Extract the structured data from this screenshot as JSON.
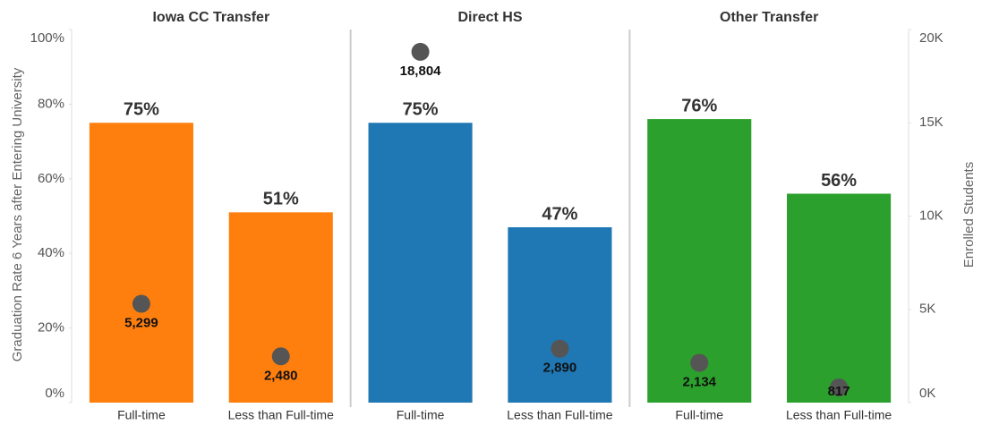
{
  "chart_data": {
    "type": "bar",
    "y_label": "Graduation Rate 6 Years after Entering University",
    "y2_label": "Enrolled Students",
    "ylim": [
      0,
      100
    ],
    "yticks": [
      {
        "value": 0,
        "label": "0%"
      },
      {
        "value": 20,
        "label": "20%"
      },
      {
        "value": 40,
        "label": "40%"
      },
      {
        "value": 60,
        "label": "60%"
      },
      {
        "value": 80,
        "label": "80%"
      },
      {
        "value": 100,
        "label": "100%"
      }
    ],
    "y2lim": [
      0,
      20000
    ],
    "y2ticks": [
      {
        "value": 0,
        "label": "0K"
      },
      {
        "value": 5000,
        "label": "5K"
      },
      {
        "value": 10000,
        "label": "10K"
      },
      {
        "value": 15000,
        "label": "15K"
      },
      {
        "value": 20000,
        "label": "20K"
      }
    ],
    "dot_color": "#555555",
    "panels": [
      {
        "title": "Iowa CC Transfer",
        "color": "#ff7f0e",
        "categories": [
          "Full-time",
          "Less than Full-time"
        ],
        "values": [
          75,
          51
        ],
        "value_labels": [
          "75%",
          "51%"
        ],
        "enrolled": [
          5299,
          2480
        ],
        "enrolled_labels": [
          "5,299",
          "2,480"
        ]
      },
      {
        "title": "Direct HS",
        "color": "#1f77b4",
        "categories": [
          "Full-time",
          "Less than Full-time"
        ],
        "values": [
          75,
          47
        ],
        "value_labels": [
          "75%",
          "47%"
        ],
        "enrolled": [
          18804,
          2890
        ],
        "enrolled_labels": [
          "18,804",
          "2,890"
        ]
      },
      {
        "title": "Other Transfer",
        "color": "#2ca02c",
        "categories": [
          "Full-time",
          "Less than Full-time"
        ],
        "values": [
          76,
          56
        ],
        "value_labels": [
          "76%",
          "56%"
        ],
        "enrolled": [
          2134,
          817
        ],
        "enrolled_labels": [
          "2,134",
          "817"
        ]
      }
    ]
  }
}
